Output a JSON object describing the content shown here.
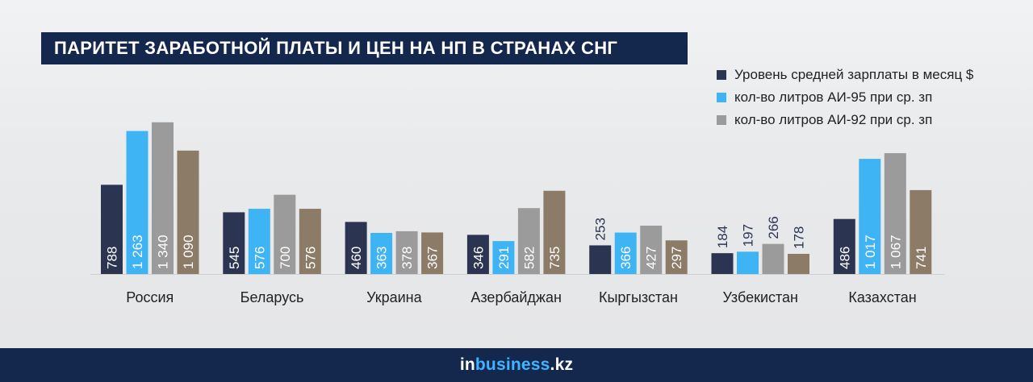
{
  "title": "ПАРИТЕТ ЗАРАБОТНОЙ ПЛАТЫ И ЦЕН НА НП В СТРАНАХ СНГ",
  "footer": {
    "brand_prefix": "in",
    "brand_main": "business",
    "brand_suffix": ".kz"
  },
  "colors": {
    "title_bg": "#14284e",
    "series": [
      "#2b3552",
      "#3fb4f4",
      "#9b9b9b",
      "#8c7b67"
    ],
    "footer_bg": "#14284e"
  },
  "chart_data": {
    "type": "bar",
    "categories": [
      "Россия",
      "Беларусь",
      "Украина",
      "Азербайджан",
      "Кыргызстан",
      "Узбекистан",
      "Казахстан"
    ],
    "series": [
      {
        "name": "Уровень средней зарплаты в месяц $",
        "values": [
          788,
          545,
          460,
          346,
          253,
          184,
          486
        ],
        "labels": [
          "788",
          "545",
          "460",
          "346",
          "253",
          "184",
          "486"
        ]
      },
      {
        "name": "кол-во литров АИ-95 при ср. зп",
        "values": [
          1263,
          576,
          363,
          291,
          366,
          197,
          1017
        ],
        "labels": [
          "1 263",
          "576",
          "363",
          "291",
          "366",
          "197",
          "1 017"
        ]
      },
      {
        "name": "кол-во литров АИ-92 при ср. зп",
        "values": [
          1340,
          700,
          378,
          582,
          427,
          266,
          1067
        ],
        "labels": [
          "1 340",
          "700",
          "378",
          "582",
          "427",
          "266",
          "1 067"
        ]
      },
      {
        "name": "",
        "values": [
          1090,
          576,
          367,
          735,
          297,
          178,
          741
        ],
        "labels": [
          "1 090",
          "576",
          "367",
          "735",
          "297",
          "178",
          "741"
        ]
      }
    ],
    "grid": false,
    "legend": "top-right"
  }
}
